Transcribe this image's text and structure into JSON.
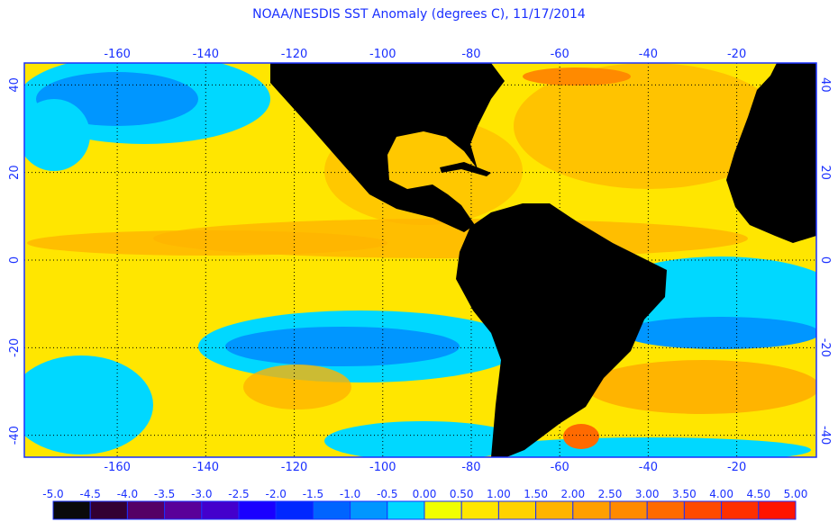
{
  "title": "NOAA/NESDIS SST Anomaly (degrees C), 11/17/2014",
  "map": {
    "lon_ticks": [
      "-160",
      "-140",
      "-120",
      "-100",
      "-80",
      "-60",
      "-40",
      "-20"
    ],
    "lon_values": [
      -160,
      -140,
      -120,
      -100,
      -80,
      -60,
      -40,
      -20
    ],
    "lat_ticks": [
      "40",
      "20",
      "0",
      "-20",
      "-40"
    ],
    "lat_values": [
      40,
      20,
      0,
      -20,
      -40
    ],
    "lon_range": [
      -181,
      -2
    ],
    "lat_range": [
      45,
      -45
    ],
    "land_color": "#000000",
    "gridline": "dotted"
  },
  "colorbar": {
    "labels": [
      "-5.0",
      "-4.5",
      "-4.0",
      "-3.5",
      "-3.0",
      "-2.5",
      "-2.0",
      "-1.5",
      "-1.0",
      "-0.5",
      "0.00",
      "0.50",
      "1.00",
      "1.50",
      "2.00",
      "2.50",
      "3.00",
      "3.50",
      "4.00",
      "4.50",
      "5.00"
    ],
    "colors": [
      "#0a0a0a",
      "#330033",
      "#550066",
      "#5a0099",
      "#4400cc",
      "#1a00ff",
      "#0028ff",
      "#0064ff",
      "#0096ff",
      "#00d8ff",
      "#f0ff00",
      "#ffe600",
      "#ffd200",
      "#ffb400",
      "#ff9f00",
      "#ff8a00",
      "#ff6a00",
      "#ff4a00",
      "#ff3000",
      "#ff1400"
    ]
  }
}
